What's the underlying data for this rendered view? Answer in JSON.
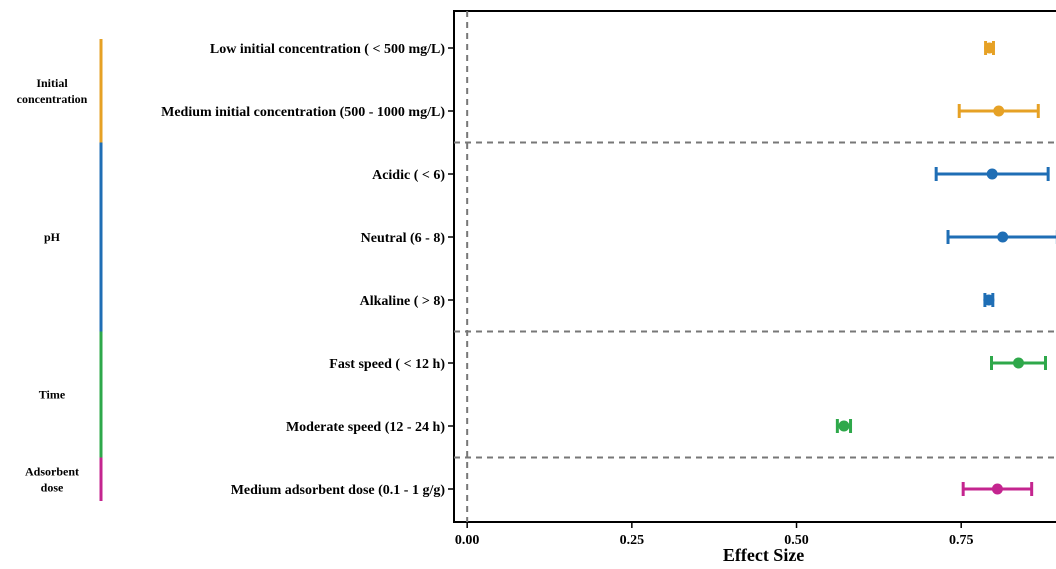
{
  "chart_data": {
    "type": "forest",
    "title": "",
    "xlabel": "Effect Size",
    "ylabel": "",
    "xlim": [
      -0.02,
      0.9
    ],
    "xticks": [
      0.0,
      0.25,
      0.5,
      0.75
    ],
    "xtick_labels": [
      "0.00",
      "0.25",
      "0.50",
      "0.75"
    ],
    "reference_line_x": 0.0,
    "grid": false,
    "groups": [
      {
        "name_lines": [
          "Initial",
          "concentration"
        ],
        "color": "#E6A125",
        "rows": [
          {
            "label": "Low initial concentration ( < 500 mg/L)",
            "estimate": 0.793,
            "lower": 0.787,
            "upper": 0.799
          },
          {
            "label": "Medium initial concentration (500 - 1000 mg/L)",
            "estimate": 0.807,
            "lower": 0.747,
            "upper": 0.867
          }
        ]
      },
      {
        "name_lines": [
          "pH"
        ],
        "color": "#1F6EB5",
        "rows": [
          {
            "label": "Acidic ( < 6)",
            "estimate": 0.797,
            "lower": 0.712,
            "upper": 0.882
          },
          {
            "label": "Neutral (6 - 8)",
            "estimate": 0.813,
            "lower": 0.73,
            "upper": 0.896
          },
          {
            "label": "Alkaline ( > 8)",
            "estimate": 0.792,
            "lower": 0.786,
            "upper": 0.798
          }
        ]
      },
      {
        "name_lines": [
          "Time"
        ],
        "color": "#2EA84A",
        "rows": [
          {
            "label": "Fast speed ( < 12 h)",
            "estimate": 0.837,
            "lower": 0.796,
            "upper": 0.878
          },
          {
            "label": "Moderate speed (12 - 24 h)",
            "estimate": 0.572,
            "lower": 0.562,
            "upper": 0.582
          }
        ]
      },
      {
        "name_lines": [
          "Adsorbent",
          "dose"
        ],
        "color": "#C4258F",
        "rows": [
          {
            "label": "Medium adsorbent dose (0.1 - 1 g/g)",
            "estimate": 0.805,
            "lower": 0.753,
            "upper": 0.857
          }
        ]
      }
    ]
  }
}
